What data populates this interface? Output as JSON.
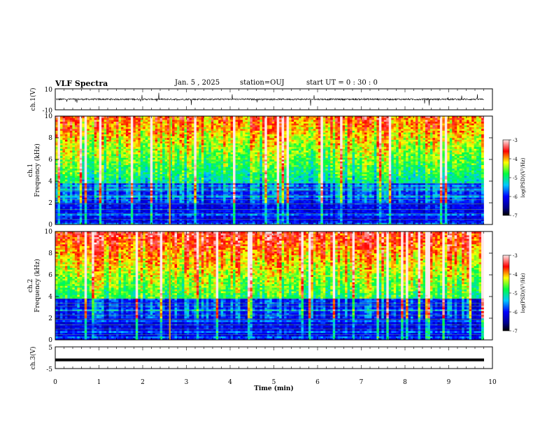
{
  "header": {
    "title": "VLF Spectra",
    "date": "Jan. 5 , 2025",
    "station": "station=OUJ",
    "start": "start  UT =  0 : 30 : 0"
  },
  "chart_data": [
    {
      "type": "line",
      "panel": "ch1-waveform",
      "ylabel": "ch.1(V)",
      "ylim": [
        -10,
        10
      ],
      "yticks": [
        "10",
        "-10"
      ],
      "xlim": [
        0,
        10
      ],
      "description_level": 0,
      "color": "#000000"
    },
    {
      "type": "heatmap",
      "panel": "ch1-spectrogram",
      "ylabel_top": "ch.1",
      "ylabel": "Frequency (kHz)",
      "ylim": [
        0,
        10
      ],
      "yticks": [
        "0",
        "2",
        "4",
        "6",
        "8",
        "10"
      ],
      "xlim": [
        0,
        9.8
      ],
      "colorbar": {
        "label": "log(PSD)(V²/Hz)",
        "range": [
          -7,
          -3
        ],
        "ticks": [
          "-3",
          "-4",
          "-5",
          "-6",
          "-7"
        ]
      }
    },
    {
      "type": "heatmap",
      "panel": "ch2-spectrogram",
      "ylabel_top": "ch.2",
      "ylabel": "Frequency (kHz)",
      "ylim": [
        0,
        10
      ],
      "yticks": [
        "0",
        "2",
        "4",
        "6",
        "8",
        "10"
      ],
      "xlim": [
        0,
        9.8
      ],
      "colorbar": {
        "label": "log(PSD)(V²/Hz)",
        "range": [
          -7,
          -3
        ],
        "ticks": [
          "-3",
          "-4",
          "-5",
          "-6",
          "-7"
        ]
      }
    },
    {
      "type": "line",
      "panel": "ch3-waveform",
      "ylabel": "ch.3(V)",
      "ylim": [
        -5,
        5
      ],
      "yticks": [
        "5",
        "-5"
      ],
      "level": -1,
      "color": "#000000"
    }
  ],
  "xaxis": {
    "label": "Time (min)",
    "ticks": [
      "0",
      "1",
      "2",
      "3",
      "4",
      "5",
      "6",
      "7",
      "8",
      "9",
      "10"
    ],
    "range": [
      0,
      10
    ]
  }
}
